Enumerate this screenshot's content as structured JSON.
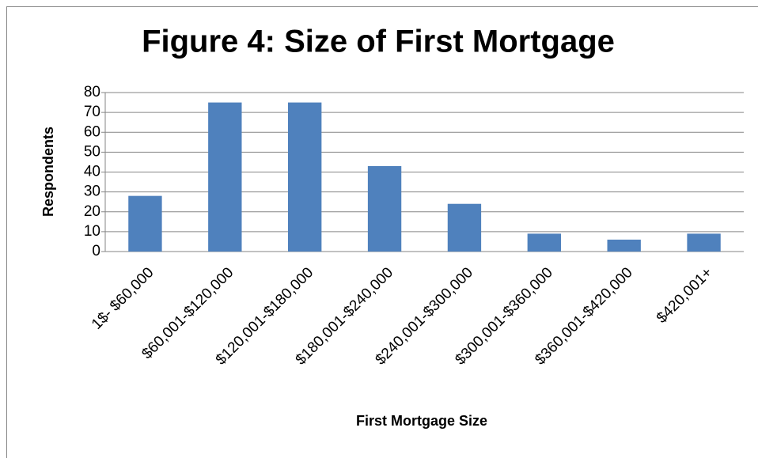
{
  "chart_data": {
    "type": "bar",
    "title": "Figure 4: Size of First Mortgage",
    "x_label": "First Mortgage Size",
    "y_label": "Respondents",
    "categories": [
      "1$- $60,000",
      "$60,001-$120,000",
      "$120,001-$180,000",
      "$180,001-$240,000",
      "$240,001-$300,000",
      "$300,001-$360,000",
      "$360,001-$420,000",
      "$420,001+"
    ],
    "values": [
      28,
      75,
      75,
      43,
      24,
      9,
      6,
      9
    ],
    "color": "#4f81bd",
    "ylim": [
      0,
      80
    ],
    "yticks": [
      0,
      10,
      20,
      30,
      40,
      50,
      60,
      70,
      80
    ],
    "grid": true
  }
}
